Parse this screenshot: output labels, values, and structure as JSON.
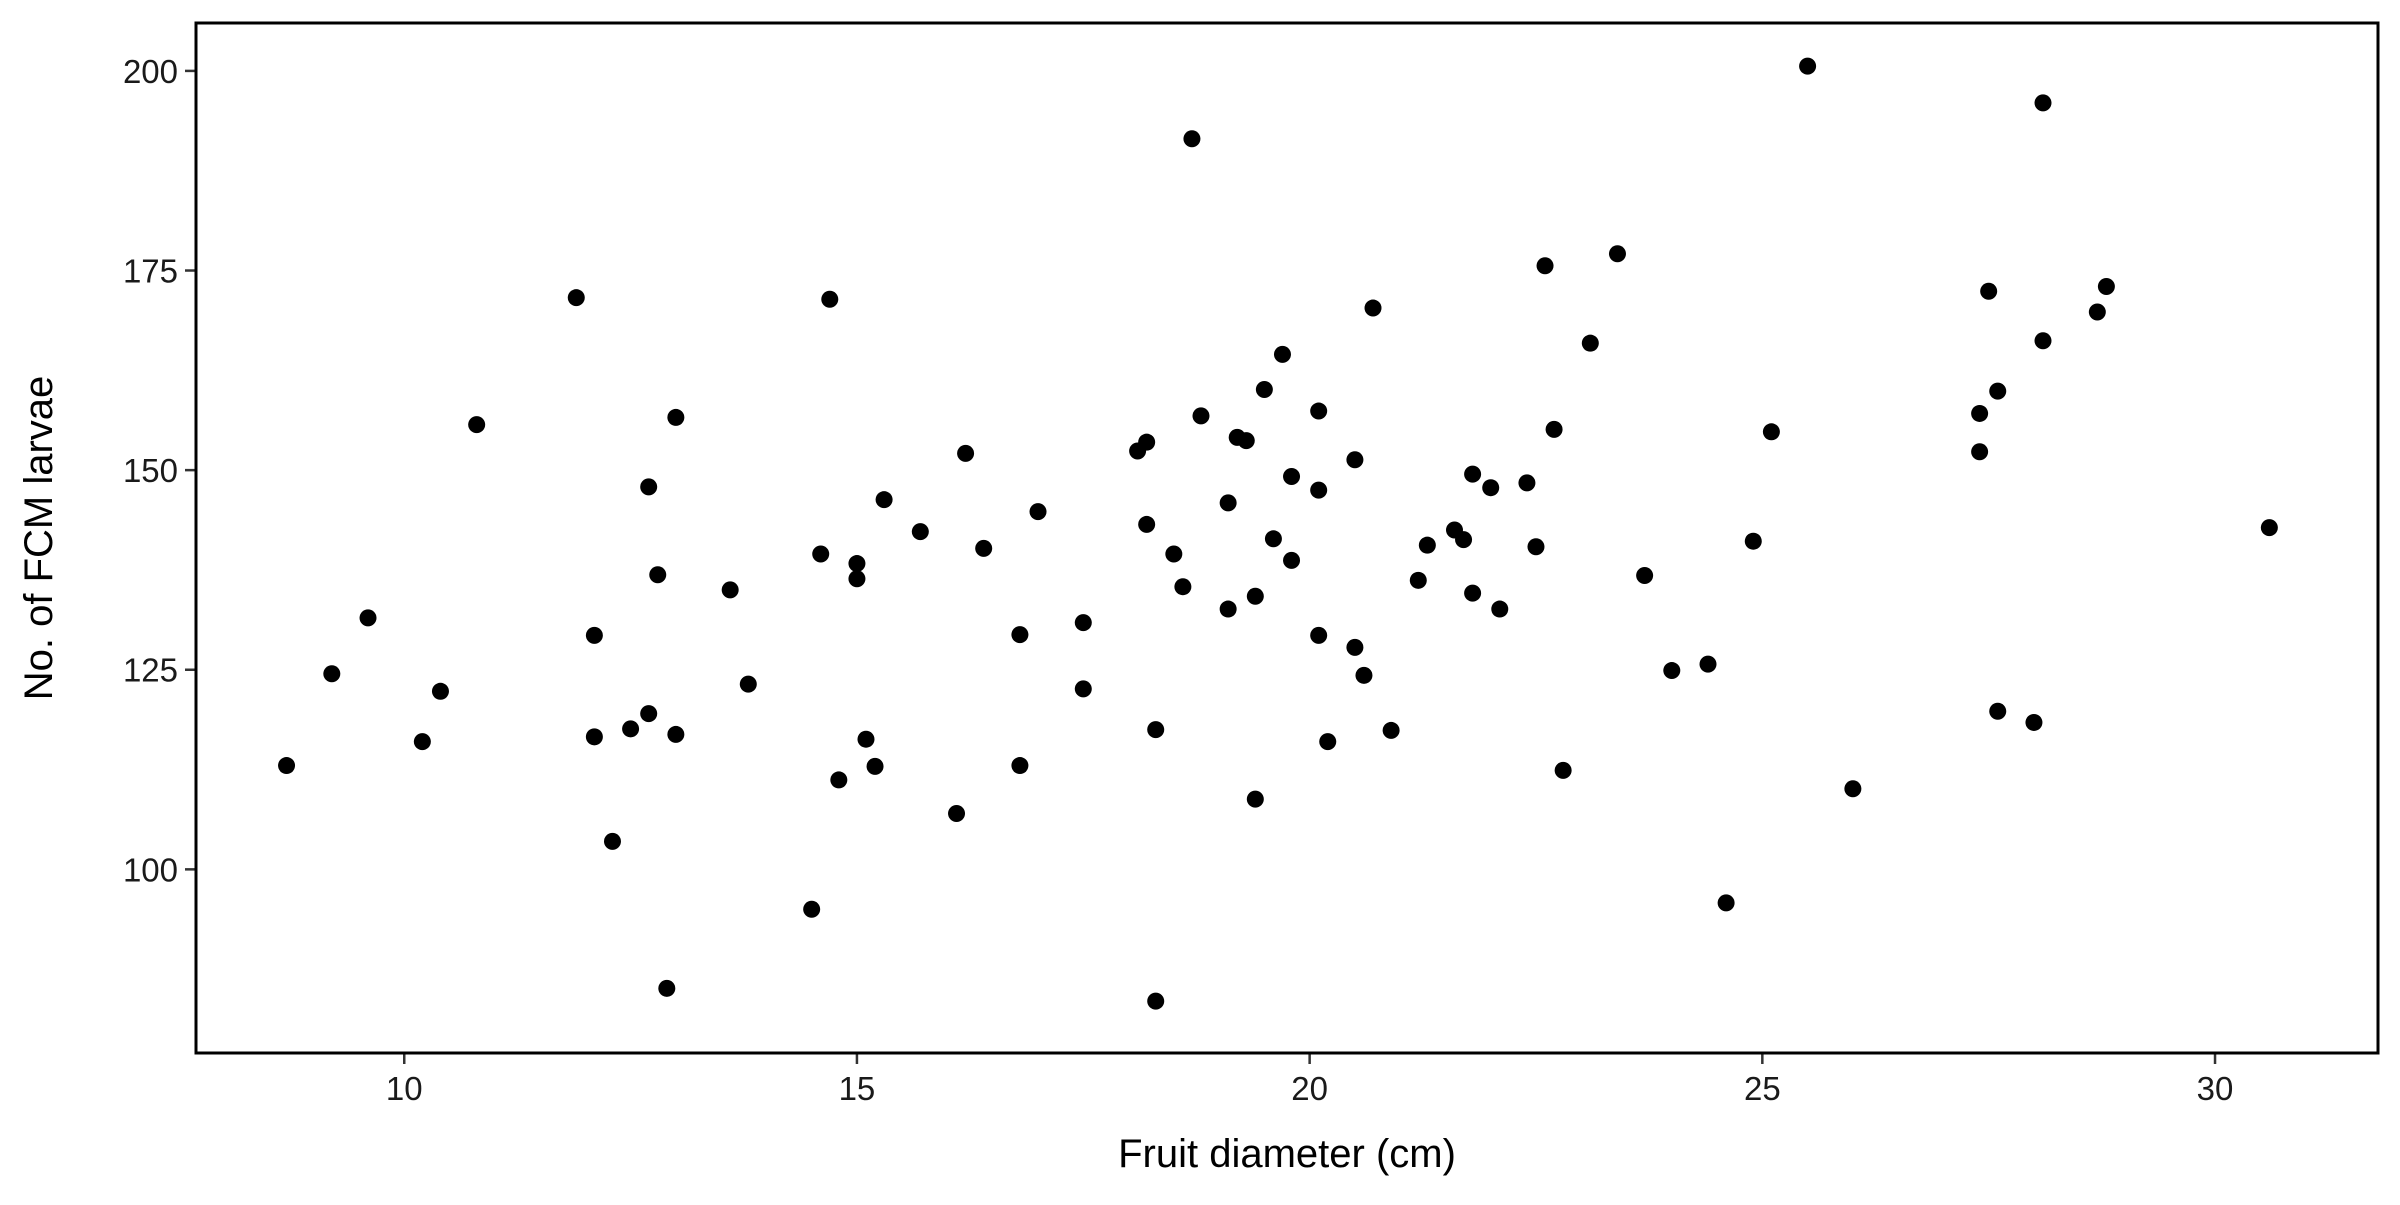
{
  "chart_data": {
    "type": "scatter",
    "title": "",
    "xlabel": "Fruit diameter (cm)",
    "ylabel": "No. of FCM larvae",
    "xlim": [
      7.7,
      31.8
    ],
    "ylim": [
      77,
      206
    ],
    "x_ticks": [
      10,
      15,
      20,
      25,
      30
    ],
    "y_ticks": [
      100,
      125,
      150,
      175,
      200
    ],
    "grid": false,
    "legend": "none",
    "point_color": "#000000",
    "points": [
      {
        "x": 8.7,
        "y": 113
      },
      {
        "x": 9.2,
        "y": 124.5
      },
      {
        "x": 9.6,
        "y": 131.5
      },
      {
        "x": 10.2,
        "y": 116
      },
      {
        "x": 10.4,
        "y": 122.3
      },
      {
        "x": 10.8,
        "y": 155.7
      },
      {
        "x": 11.9,
        "y": 171.6
      },
      {
        "x": 12.1,
        "y": 129.3
      },
      {
        "x": 12.1,
        "y": 116.6
      },
      {
        "x": 12.3,
        "y": 103.5
      },
      {
        "x": 12.5,
        "y": 117.6
      },
      {
        "x": 12.7,
        "y": 147.9
      },
      {
        "x": 12.7,
        "y": 119.5
      },
      {
        "x": 12.8,
        "y": 136.9
      },
      {
        "x": 12.9,
        "y": 85.1
      },
      {
        "x": 13.0,
        "y": 156.6
      },
      {
        "x": 13.0,
        "y": 116.9
      },
      {
        "x": 13.6,
        "y": 135
      },
      {
        "x": 13.8,
        "y": 123.2
      },
      {
        "x": 14.5,
        "y": 95
      },
      {
        "x": 14.6,
        "y": 139.5
      },
      {
        "x": 14.7,
        "y": 171.4
      },
      {
        "x": 14.8,
        "y": 111.2
      },
      {
        "x": 15.0,
        "y": 138.3
      },
      {
        "x": 15.0,
        "y": 136.4
      },
      {
        "x": 15.1,
        "y": 116.3
      },
      {
        "x": 15.2,
        "y": 112.9
      },
      {
        "x": 15.3,
        "y": 146.3
      },
      {
        "x": 15.7,
        "y": 142.3
      },
      {
        "x": 16.1,
        "y": 107
      },
      {
        "x": 16.2,
        "y": 152.1
      },
      {
        "x": 16.4,
        "y": 140.2
      },
      {
        "x": 16.8,
        "y": 129.4
      },
      {
        "x": 16.8,
        "y": 113
      },
      {
        "x": 17.0,
        "y": 144.8
      },
      {
        "x": 17.5,
        "y": 130.9
      },
      {
        "x": 17.5,
        "y": 122.6
      },
      {
        "x": 18.1,
        "y": 152.4
      },
      {
        "x": 18.2,
        "y": 153.5
      },
      {
        "x": 18.2,
        "y": 143.2
      },
      {
        "x": 18.3,
        "y": 117.5
      },
      {
        "x": 18.3,
        "y": 83.5
      },
      {
        "x": 18.5,
        "y": 139.5
      },
      {
        "x": 18.6,
        "y": 135.4
      },
      {
        "x": 18.7,
        "y": 191.5
      },
      {
        "x": 18.8,
        "y": 156.8
      },
      {
        "x": 19.1,
        "y": 145.9
      },
      {
        "x": 19.1,
        "y": 132.6
      },
      {
        "x": 19.2,
        "y": 154.1
      },
      {
        "x": 19.3,
        "y": 153.7
      },
      {
        "x": 19.4,
        "y": 134.2
      },
      {
        "x": 19.4,
        "y": 108.8
      },
      {
        "x": 19.5,
        "y": 160.1
      },
      {
        "x": 19.6,
        "y": 141.4
      },
      {
        "x": 19.7,
        "y": 164.5
      },
      {
        "x": 19.8,
        "y": 149.2
      },
      {
        "x": 19.8,
        "y": 138.7
      },
      {
        "x": 20.1,
        "y": 157.4
      },
      {
        "x": 20.1,
        "y": 147.5
      },
      {
        "x": 20.1,
        "y": 129.3
      },
      {
        "x": 20.2,
        "y": 116
      },
      {
        "x": 20.5,
        "y": 151.3
      },
      {
        "x": 20.5,
        "y": 127.8
      },
      {
        "x": 20.6,
        "y": 124.3
      },
      {
        "x": 20.7,
        "y": 170.3
      },
      {
        "x": 20.9,
        "y": 117.4
      },
      {
        "x": 21.2,
        "y": 136.2
      },
      {
        "x": 21.3,
        "y": 140.6
      },
      {
        "x": 21.6,
        "y": 142.5
      },
      {
        "x": 21.7,
        "y": 141.3
      },
      {
        "x": 21.8,
        "y": 149.5
      },
      {
        "x": 21.8,
        "y": 134.6
      },
      {
        "x": 22.0,
        "y": 147.8
      },
      {
        "x": 22.1,
        "y": 132.6
      },
      {
        "x": 22.4,
        "y": 148.4
      },
      {
        "x": 22.5,
        "y": 140.4
      },
      {
        "x": 22.6,
        "y": 175.6
      },
      {
        "x": 22.7,
        "y": 155.1
      },
      {
        "x": 22.8,
        "y": 112.4
      },
      {
        "x": 23.1,
        "y": 165.9
      },
      {
        "x": 23.4,
        "y": 177.1
      },
      {
        "x": 23.7,
        "y": 136.8
      },
      {
        "x": 24.0,
        "y": 124.9
      },
      {
        "x": 24.4,
        "y": 125.7
      },
      {
        "x": 24.6,
        "y": 95.8
      },
      {
        "x": 24.9,
        "y": 141.1
      },
      {
        "x": 25.1,
        "y": 154.8
      },
      {
        "x": 25.5,
        "y": 200.6
      },
      {
        "x": 26.0,
        "y": 110.1
      },
      {
        "x": 27.4,
        "y": 157.1
      },
      {
        "x": 27.4,
        "y": 152.3
      },
      {
        "x": 27.5,
        "y": 172.4
      },
      {
        "x": 27.6,
        "y": 159.9
      },
      {
        "x": 27.6,
        "y": 119.8
      },
      {
        "x": 28.0,
        "y": 118.4
      },
      {
        "x": 28.1,
        "y": 196
      },
      {
        "x": 28.1,
        "y": 166.2
      },
      {
        "x": 28.7,
        "y": 169.8
      },
      {
        "x": 28.8,
        "y": 173
      },
      {
        "x": 30.6,
        "y": 142.8
      }
    ]
  }
}
